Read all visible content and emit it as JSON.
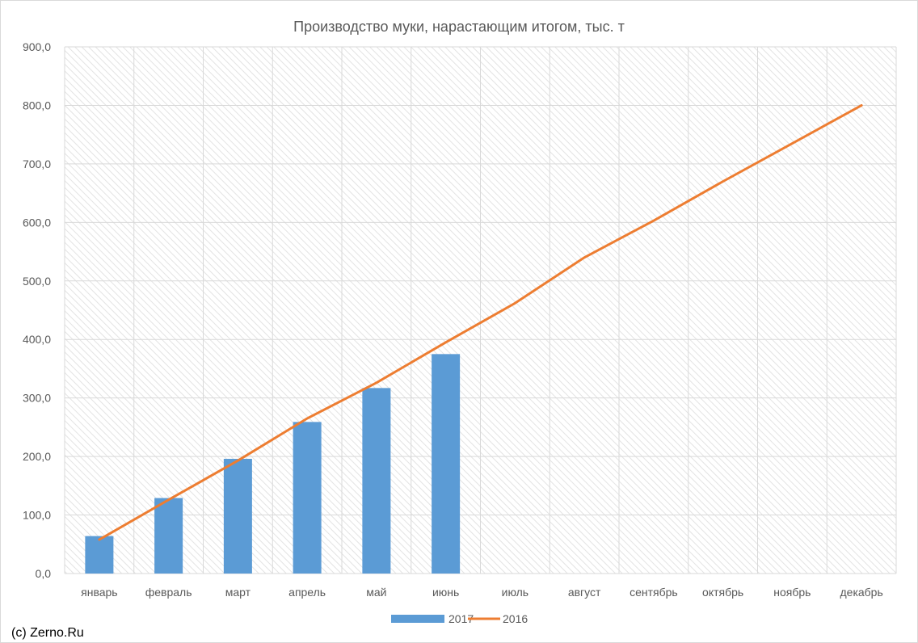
{
  "chart_data": {
    "type": "bar",
    "title": "Производство муки, нарастающим итогом, тыс. т",
    "xlabel": "",
    "ylabel": "",
    "categories": [
      "январь",
      "февраль",
      "март",
      "апрель",
      "май",
      "июнь",
      "июль",
      "август",
      "сентябрь",
      "октябрь",
      "ноябрь",
      "декабрь"
    ],
    "ylim": [
      0,
      900
    ],
    "yticks": [
      "0,0",
      "100,0",
      "200,0",
      "300,0",
      "400,0",
      "500,0",
      "600,0",
      "700,0",
      "800,0",
      "900,0"
    ],
    "grid": true,
    "legend_position": "bottom",
    "series": [
      {
        "name": "2017",
        "kind": "bar",
        "color": "#5b9bd5",
        "values": [
          64,
          129,
          196,
          259,
          317,
          375,
          null,
          null,
          null,
          null,
          null,
          null
        ]
      },
      {
        "name": "2016",
        "kind": "line",
        "color": "#ed7d31",
        "values": [
          58,
          126,
          193,
          265,
          326,
          395,
          462,
          540,
          603,
          670,
          735,
          800
        ]
      }
    ]
  },
  "copyright": "(c) Zerno.Ru"
}
